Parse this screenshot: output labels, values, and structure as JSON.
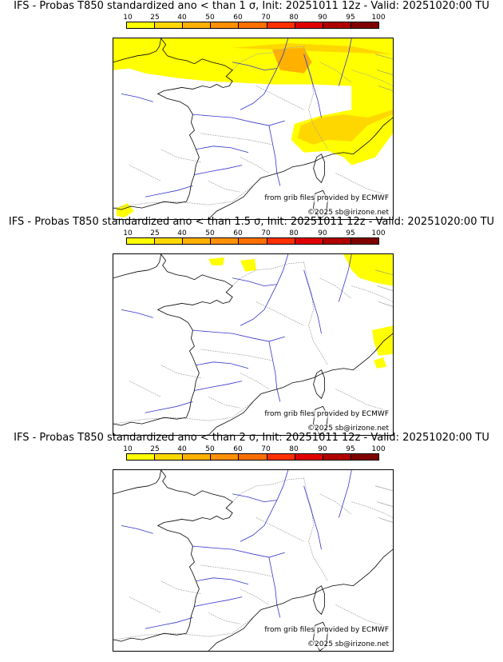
{
  "colorbar": {
    "ticks": [
      "10",
      "25",
      "40",
      "50",
      "60",
      "70",
      "80",
      "90",
      "95",
      "100"
    ],
    "colors": [
      "#ffff00",
      "#ffd700",
      "#ffb000",
      "#ff9000",
      "#ff7000",
      "#ff3000",
      "#e00000",
      "#b00000",
      "#800000"
    ]
  },
  "panels": [
    {
      "title": "IFS - Probas T850  standardized ano < than 1 σ, Init: 20251011 12z - Valid: 20251020:00 TU",
      "credit_source": "from grib files provided by ECMWF",
      "credit_copyright": "©2025 sb@irizone.net",
      "coverage": "large"
    },
    {
      "title": "IFS - Probas T850  standardized ano < than 1.5 σ, Init: 20251011 12z - Valid: 20251020:00 TU",
      "credit_source": "from grib files provided by ECMWF",
      "credit_copyright": "©2025 sb@irizone.net",
      "coverage": "small"
    },
    {
      "title": "IFS - Probas T850  standardized ano < than 2 σ, Init: 20251011 12z - Valid: 20251020:00 TU",
      "credit_source": "from grib files provided by ECMWF",
      "credit_copyright": "©2025 sb@irizone.net",
      "coverage": "none"
    }
  ]
}
